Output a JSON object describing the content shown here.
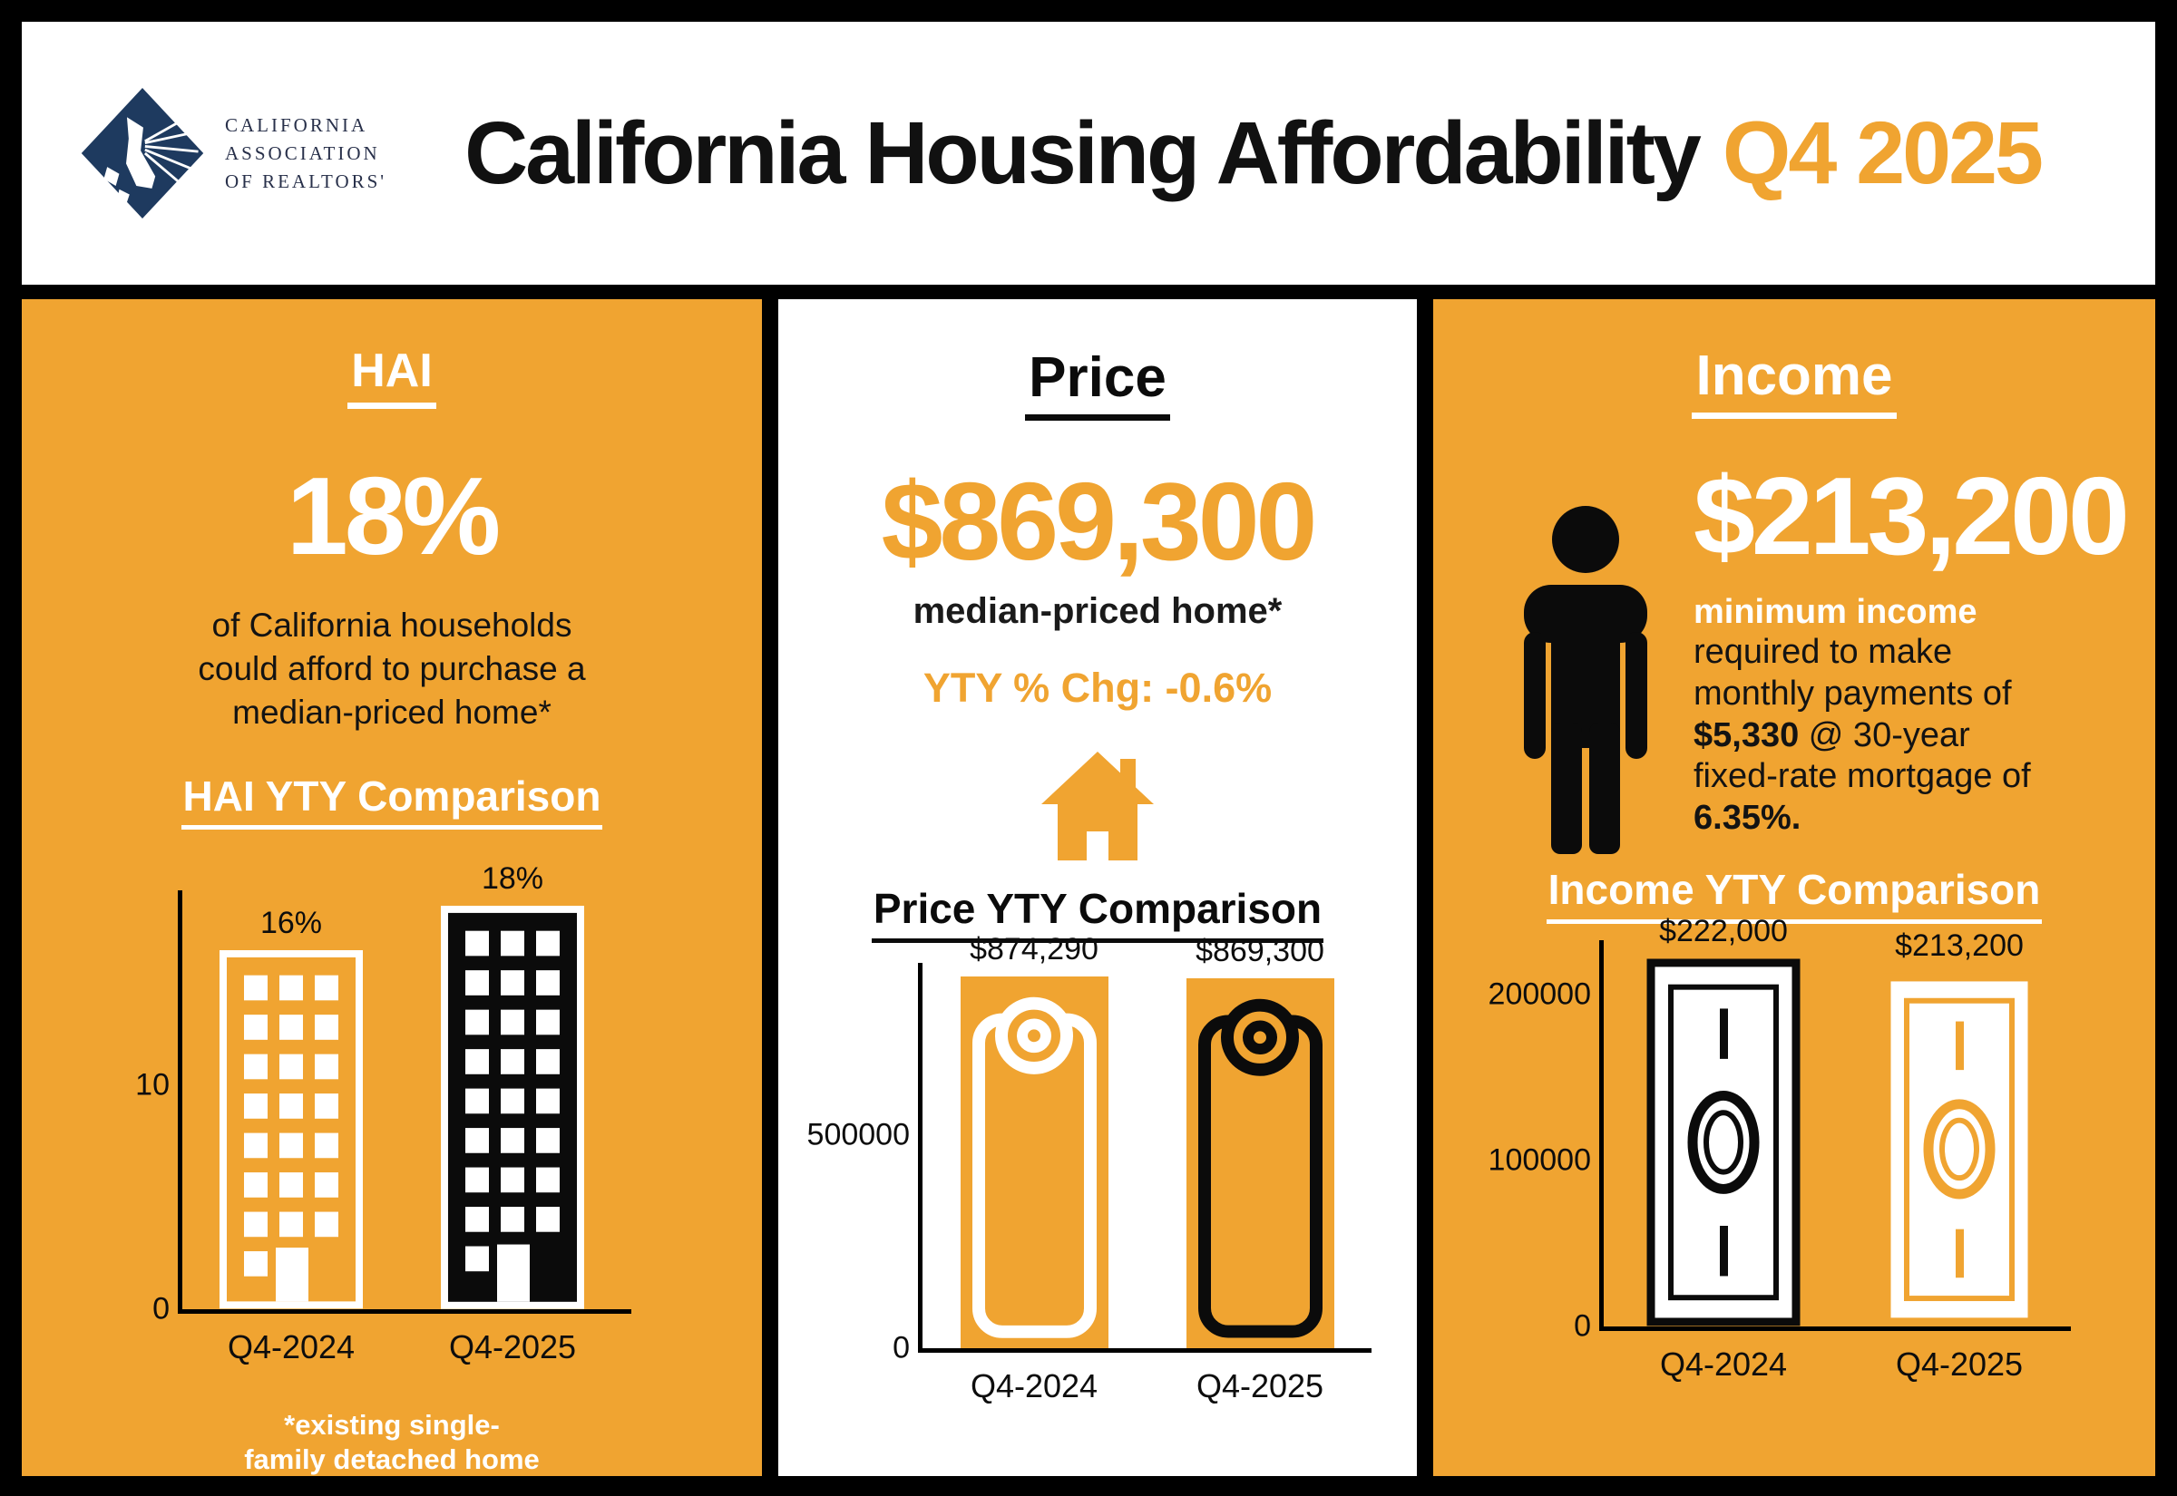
{
  "colors": {
    "orange": "#F0A431",
    "navy": "#1E3A5F",
    "black": "#0B0B0B",
    "white": "#FFFFFF"
  },
  "header": {
    "logo_lines": [
      "CALIFORNIA",
      "ASSOCIATION",
      "OF REALTORS'"
    ],
    "title": "California Housing Affordability",
    "title_accent": "Q4 2025"
  },
  "hai": {
    "heading": "HAI",
    "big_value": "18%",
    "description": "of California households could afford to purchase a median-priced home*",
    "footnote_line1": "*existing single-",
    "footnote_line2": "family detached home"
  },
  "price": {
    "heading": "Price",
    "big_value": "$869,300",
    "big_value_caption": "median-priced home*",
    "yty_change": "YTY % Chg: -0.6%"
  },
  "income": {
    "heading": "Income",
    "big_value": "$213,200",
    "desc_highlight": "minimum income",
    "desc_pre": "required to make monthly payments of",
    "desc_amount": "$5,330",
    "desc_mid": "@ 30-year fixed-rate mortgage of",
    "desc_rate": "6.35%."
  },
  "chart_data": [
    {
      "id": "hai_yty",
      "type": "bar",
      "title": "HAI YTY Comparison",
      "categories": [
        "Q4-2024",
        "Q4-2025"
      ],
      "values": [
        16,
        18
      ],
      "value_labels": [
        "16%",
        "18%"
      ],
      "yticks": [
        {
          "value": 0,
          "label": "0"
        },
        {
          "value": 10,
          "label": "10"
        }
      ],
      "ylim": [
        0,
        18.7
      ],
      "xlabel": "",
      "ylabel": "",
      "grid": false,
      "legend": false,
      "bar_icons": [
        "orange-building",
        "black-building"
      ]
    },
    {
      "id": "price_yty",
      "type": "bar",
      "title": "Price YTY Comparison",
      "categories": [
        "Q4-2024",
        "Q4-2025"
      ],
      "values": [
        874290,
        869300
      ],
      "value_labels": [
        "$874,290",
        "$869,300"
      ],
      "yticks": [
        {
          "value": 0,
          "label": "0"
        },
        {
          "value": 500000,
          "label": "500000"
        }
      ],
      "ylim": [
        0,
        907000
      ],
      "xlabel": "",
      "ylabel": "",
      "grid": false,
      "legend": false,
      "bar_icons": [
        "white-price-tag",
        "black-price-tag"
      ]
    },
    {
      "id": "income_yty",
      "type": "bar",
      "title": "Income YTY Comparison",
      "categories": [
        "Q4-2024",
        "Q4-2025"
      ],
      "values": [
        222000,
        213200
      ],
      "value_labels": [
        "$222,000",
        "$213,200"
      ],
      "yticks": [
        {
          "value": 0,
          "label": "0"
        },
        {
          "value": 100000,
          "label": "100000"
        },
        {
          "value": 200000,
          "label": "200000"
        }
      ],
      "ylim": [
        0,
        233000
      ],
      "xlabel": "",
      "ylabel": "",
      "grid": false,
      "legend": false,
      "bar_icons": [
        "black-dollar-bill",
        "orange-dollar-bill"
      ]
    }
  ]
}
